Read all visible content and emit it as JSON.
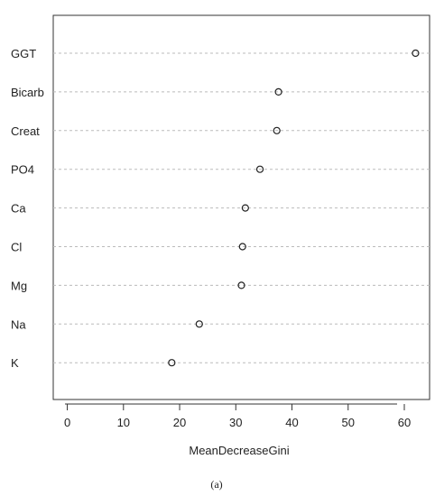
{
  "chart_data": {
    "type": "scatter",
    "title": "",
    "xlabel": "MeanDecreaseGini",
    "ylabel": "",
    "xlim": [
      -2.5,
      64.5
    ],
    "xticks": [
      0,
      10,
      20,
      30,
      40,
      50,
      60
    ],
    "grid": "horizontal dashed",
    "legend": "none",
    "categories": [
      "GGT",
      "Bicarb",
      "Creat",
      "PO4",
      "Ca",
      "Cl",
      "Mg",
      "Na",
      "K"
    ],
    "values": [
      62.0,
      37.6,
      37.3,
      34.3,
      31.7,
      31.2,
      31.0,
      23.5,
      18.6
    ],
    "marker": "open-circle",
    "colors": {
      "marker": "#222222",
      "axis": "#333333",
      "grid": "#bbbbbb"
    }
  },
  "caption": "(a)"
}
